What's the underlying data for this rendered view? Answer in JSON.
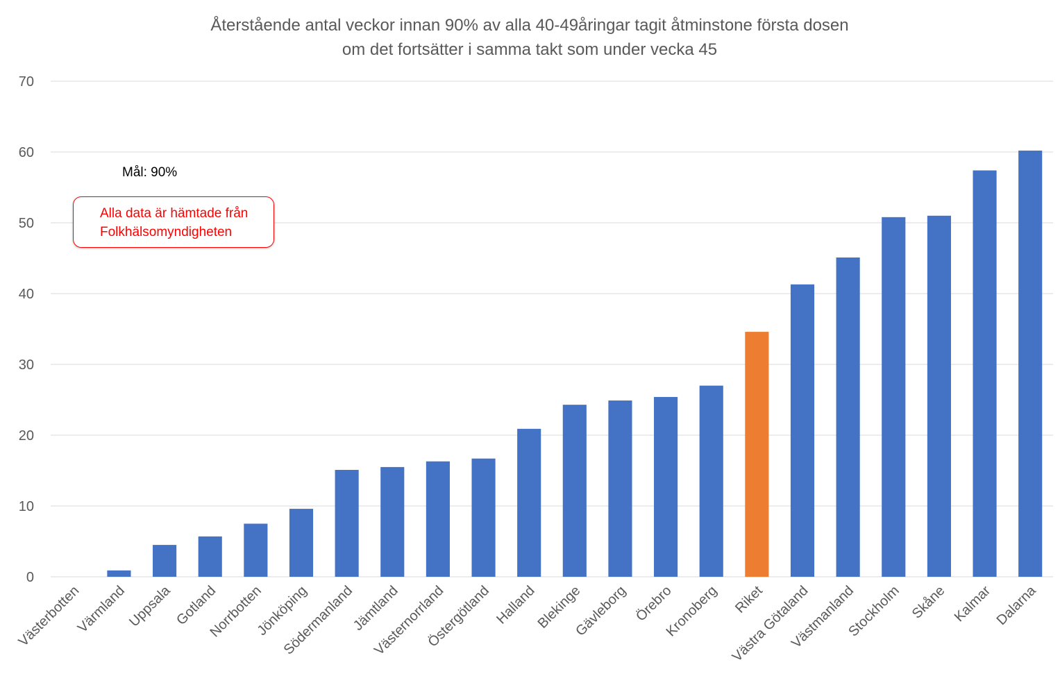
{
  "chart_data": {
    "type": "bar",
    "title": [
      "Återstående antal veckor innan 90% av alla 40-49åringar tagit åtminstone första dosen",
      "om det fortsätter i samma takt som under vecka 45"
    ],
    "xlabel": "",
    "ylabel": "",
    "ylim": [
      0,
      70
    ],
    "yticks": [
      0,
      10,
      20,
      30,
      40,
      50,
      60,
      70
    ],
    "grid": true,
    "categories": [
      "Västerbotten",
      "Värmland",
      "Uppsala",
      "Gotland",
      "Norrbotten",
      "Jönköping",
      "Södermanland",
      "Jämtland",
      "Västernorrland",
      "Östergötland",
      "Halland",
      "Blekinge",
      "Gävleborg",
      "Örebro",
      "Kronoberg",
      "Riket",
      "Västra Götaland",
      "Västmanland",
      "Stockholm",
      "Skåne",
      "Kalmar",
      "Dalarna"
    ],
    "values": [
      0,
      0.9,
      4.5,
      5.7,
      7.5,
      9.6,
      15.1,
      15.5,
      16.3,
      16.7,
      20.9,
      24.3,
      24.9,
      25.4,
      27.0,
      34.6,
      41.3,
      45.1,
      50.8,
      51.0,
      57.4,
      60.2
    ],
    "colors": {
      "default": "#4472c4",
      "highlight": "#ed7d31",
      "highlight_category": "Riket"
    }
  },
  "annotations": {
    "goal": "Mål: 90%",
    "source_line1": "Alla data är hämtade från",
    "source_line2": "Folkhälsomyndigheten"
  }
}
